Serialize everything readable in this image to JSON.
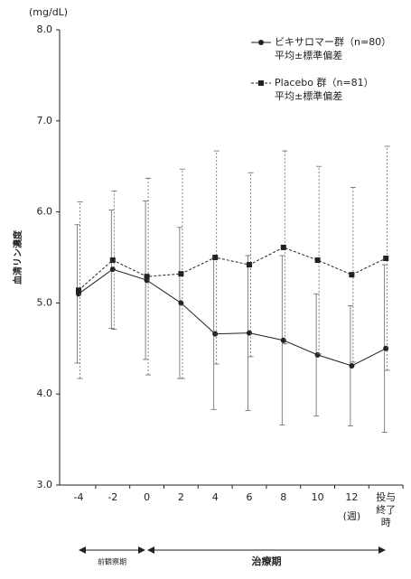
{
  "chart_data": {
    "type": "line",
    "y_unit": "(mg/dL)",
    "y_label": "血清リン濃度",
    "categories": [
      "-4",
      "-2",
      "0",
      "2",
      "4",
      "6",
      "8",
      "10",
      "12",
      "投与終了時"
    ],
    "x_unit": "(週)",
    "ylim": [
      3,
      8
    ],
    "yticks": [
      {
        "value": 3,
        "label": "3.0"
      },
      {
        "value": 4,
        "label": "4.0"
      },
      {
        "value": 5,
        "label": "5.0"
      },
      {
        "value": 6,
        "label": "6.0"
      },
      {
        "value": 7,
        "label": "7.0"
      },
      {
        "value": 8,
        "label": "8.0"
      }
    ],
    "series": [
      {
        "name": "ビキサロマー群（n=80）",
        "note": "平均±標準偏差",
        "color": "#222222",
        "dashed": false,
        "marker": "circle",
        "values": [
          5.1,
          5.37,
          5.25,
          5.0,
          4.66,
          4.67,
          4.59,
          4.43,
          4.31,
          4.5
        ],
        "errors": [
          0.76,
          0.65,
          0.87,
          0.83,
          0.83,
          0.85,
          0.93,
          0.67,
          0.66,
          0.92
        ]
      },
      {
        "name": "Placebo 群（n=81）",
        "note": "平均±標準偏差",
        "color": "#222222",
        "dashed": true,
        "marker": "square",
        "values": [
          5.14,
          5.47,
          5.29,
          5.32,
          5.5,
          5.42,
          5.61,
          5.47,
          5.31,
          5.49
        ],
        "errors": [
          0.97,
          0.76,
          1.08,
          1.15,
          1.17,
          1.01,
          1.06,
          1.03,
          0.96,
          1.23
        ]
      }
    ],
    "periods": [
      "前観察期",
      "治療期"
    ]
  }
}
